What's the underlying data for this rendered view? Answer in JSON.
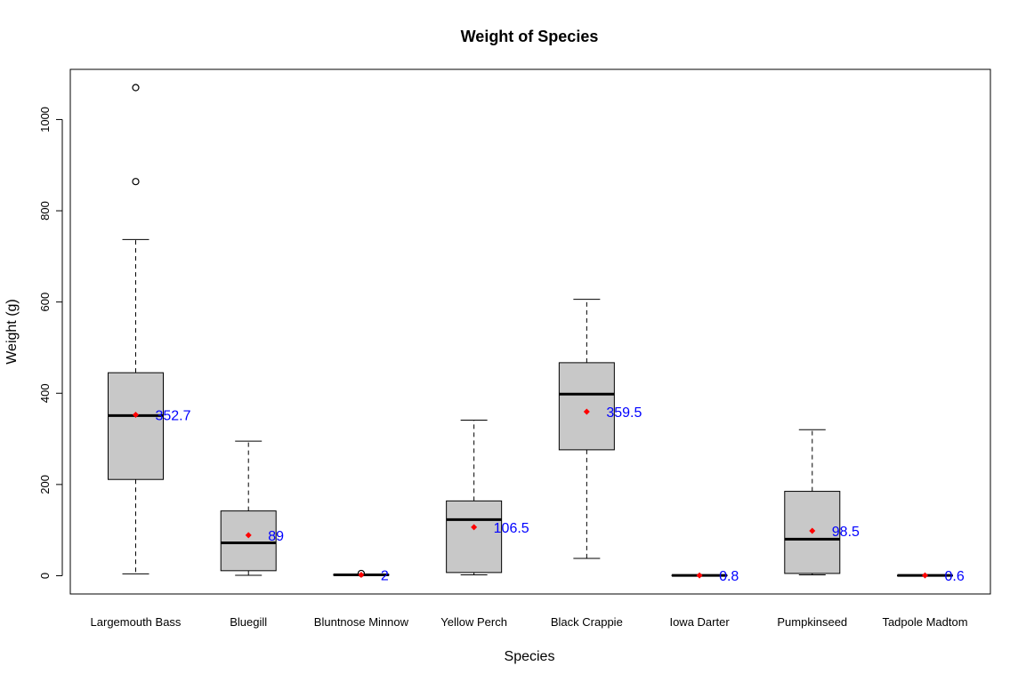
{
  "chart_data": {
    "type": "boxplot",
    "title": "Weight of Species",
    "xlabel": "Species",
    "ylabel": "Weight (g)",
    "ylim": [
      -40,
      1110
    ],
    "yticks": [
      0,
      200,
      400,
      600,
      800,
      1000
    ],
    "grid": false,
    "legend": "none",
    "colors": {
      "box_fill": "#c8c8c8",
      "mean_marker": "#ff0000",
      "mean_label": "#0000ff",
      "line": "#000000"
    },
    "categories": [
      "Largemouth Bass",
      "Bluegill",
      "Bluntnose Minnow",
      "Yellow Perch",
      "Black Crappie",
      "Iowa Darter",
      "Pumpkinseed",
      "Tadpole Madtom"
    ],
    "series": [
      {
        "category": "Largemouth Bass",
        "whisker_low": 4,
        "q1": 211,
        "median": 351,
        "q3": 445,
        "whisker_high": 737,
        "mean": 352.7,
        "mean_label": "352.7",
        "outliers": [
          864,
          1070
        ]
      },
      {
        "category": "Bluegill",
        "whisker_low": 1,
        "q1": 11,
        "median": 72,
        "q3": 142,
        "whisker_high": 295,
        "mean": 89,
        "mean_label": "89",
        "outliers": []
      },
      {
        "category": "Bluntnose Minnow",
        "whisker_low": 1,
        "q1": 1,
        "median": 2,
        "q3": 3,
        "whisker_high": 3,
        "mean": 2,
        "mean_label": "2",
        "outliers": [
          5
        ]
      },
      {
        "category": "Yellow Perch",
        "whisker_low": 2,
        "q1": 7,
        "median": 123,
        "q3": 164,
        "whisker_high": 341,
        "mean": 106.5,
        "mean_label": "106.5",
        "outliers": []
      },
      {
        "category": "Black Crappie",
        "whisker_low": 38,
        "q1": 276,
        "median": 398,
        "q3": 467,
        "whisker_high": 606,
        "mean": 359.5,
        "mean_label": "359.5",
        "outliers": []
      },
      {
        "category": "Iowa Darter",
        "whisker_low": 0.5,
        "q1": 0.6,
        "median": 0.8,
        "q3": 1.0,
        "whisker_high": 1.1,
        "mean": 0.8,
        "mean_label": "0.8",
        "outliers": []
      },
      {
        "category": "Pumpkinseed",
        "whisker_low": 2,
        "q1": 5,
        "median": 80,
        "q3": 185,
        "whisker_high": 320,
        "mean": 98.5,
        "mean_label": "98.5",
        "outliers": []
      },
      {
        "category": "Tadpole Madtom",
        "whisker_low": 0.4,
        "q1": 0.5,
        "median": 0.6,
        "q3": 0.7,
        "whisker_high": 0.8,
        "mean": 0.6,
        "mean_label": "0.6",
        "outliers": []
      }
    ]
  }
}
